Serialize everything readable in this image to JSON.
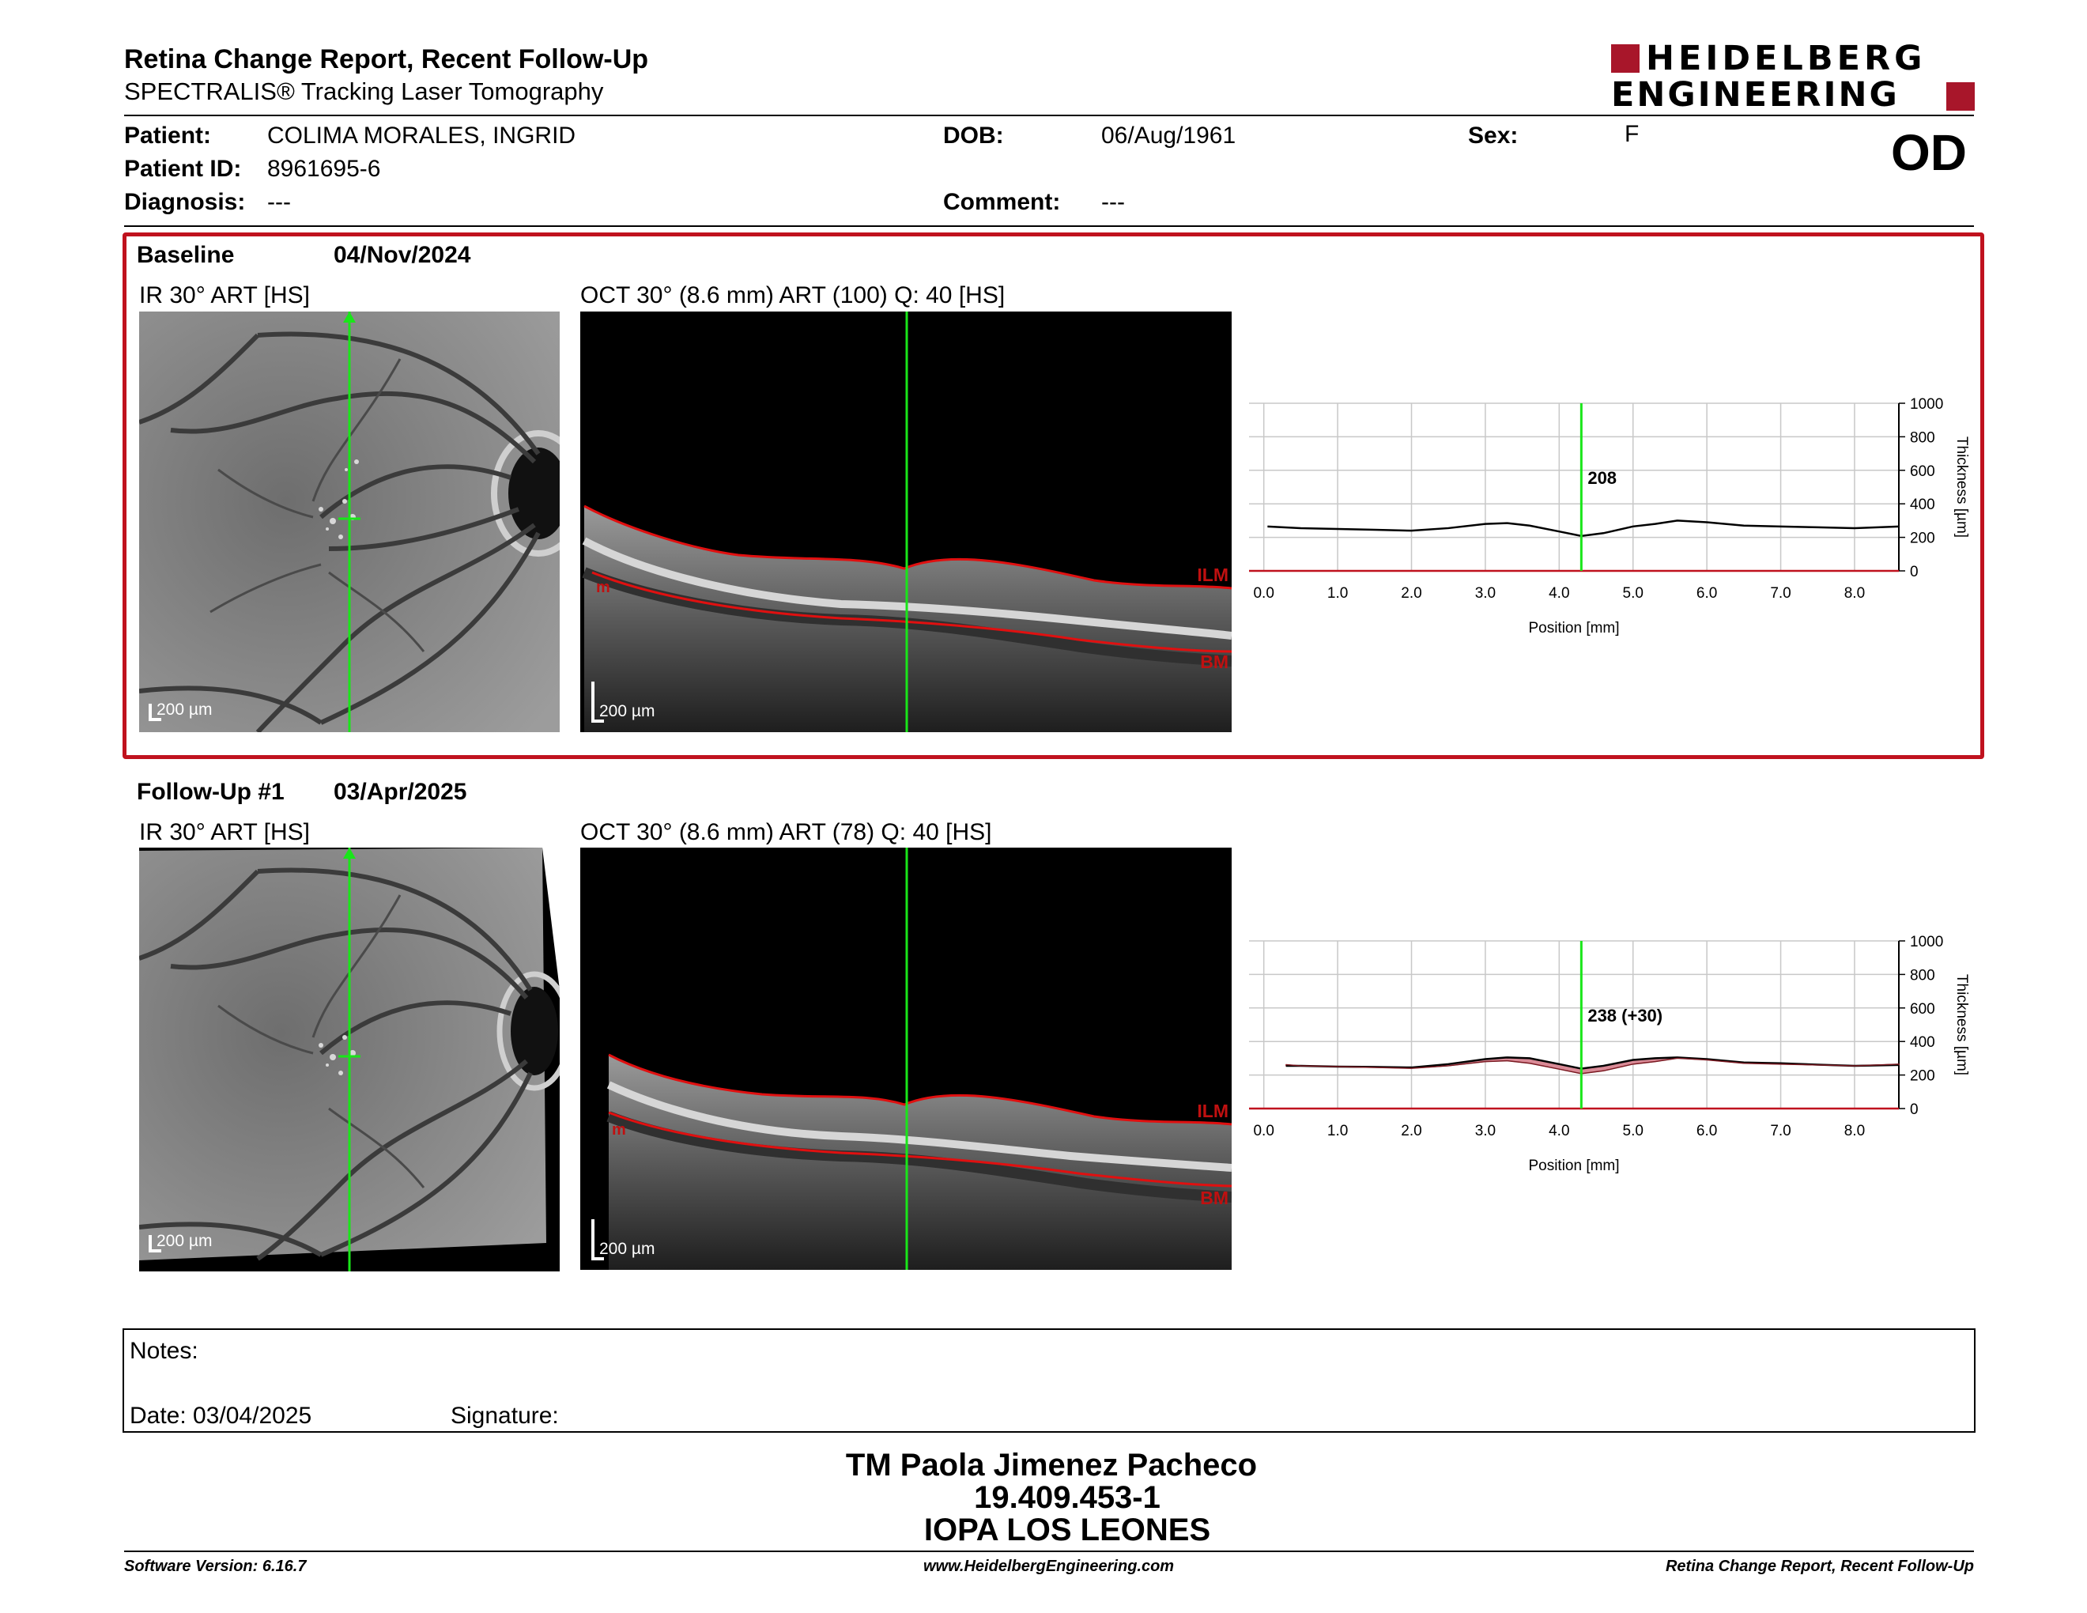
{
  "header": {
    "title": "Retina Change Report, Recent Follow-Up",
    "subtitle": "SPECTRALIS® Tracking Laser Tomography",
    "logo_line1": "HEIDELBERG",
    "logo_line2": "ENGINEERING",
    "eye": "OD"
  },
  "patient": {
    "patient_label": "Patient:",
    "patient_value": "COLIMA MORALES, INGRID",
    "id_label": "Patient ID:",
    "id_value": "8961695-6",
    "diagnosis_label": "Diagnosis:",
    "diagnosis_value": "---",
    "dob_label": "DOB:",
    "dob_value": "06/Aug/1961",
    "comment_label": "Comment:",
    "comment_value": "---",
    "sex_label": "Sex:",
    "sex_value": "F"
  },
  "baseline": {
    "label": "Baseline",
    "date": "04/Nov/2024",
    "ir_title": "IR 30° ART [HS]",
    "oct_title": "OCT 30° (8.6 mm) ART (100) Q: 40 [HS]",
    "scale_ir": "200 µm",
    "scale_oct": "200 µm",
    "ilm": "ILM",
    "bm": "BM",
    "left_tag": "m",
    "marker_value": "208"
  },
  "followup": {
    "label": "Follow-Up #1",
    "date": "03/Apr/2025",
    "ir_title": "IR 30° ART [HS]",
    "oct_title": "OCT 30° (8.6 mm) ART (78) Q: 40 [HS]",
    "scale_ir": "200 µm",
    "scale_oct": "200 µm",
    "ilm": "ILM",
    "bm": "BM",
    "left_tag": "m",
    "marker_value": "238 (+30)"
  },
  "notes": {
    "notes_label": "Notes:",
    "date_label": "Date: 03/04/2025",
    "signature_label": "Signature:"
  },
  "stamp": {
    "line1": "TM Paola Jimenez Pacheco",
    "line2": "19.409.453-1",
    "line3": "IOPA LOS LEONES"
  },
  "footer": {
    "left": "Software Version: 6.16.7",
    "center": "www.HeidelbergEngineering.com",
    "right": "Retina Change Report, Recent Follow-Up"
  },
  "colors": {
    "accent_red": "#a8162a",
    "ilm_line": "#e01010",
    "scan_line": "#19e619"
  },
  "chart_data": [
    {
      "type": "line",
      "xlabel": "Position [mm]",
      "ylabel": "Thickness [µm]",
      "xlim": [
        -0.2,
        8.6
      ],
      "ylim": [
        0,
        1000
      ],
      "x_ticks": [
        "0.0",
        "1.0",
        "2.0",
        "3.0",
        "4.0",
        "5.0",
        "6.0",
        "7.0",
        "8.0"
      ],
      "y_ticks": [
        "0",
        "200",
        "400",
        "600",
        "800",
        "1000"
      ],
      "marker_x": 4.3,
      "marker_label": "208",
      "grid": true,
      "series": [
        {
          "x": [
            0.05,
            0.5,
            1.0,
            1.5,
            2.0,
            2.5,
            3.0,
            3.3,
            3.6,
            4.0,
            4.3,
            4.6,
            5.0,
            5.3,
            5.6,
            6.0,
            6.5,
            7.0,
            7.5,
            8.0,
            8.6
          ],
          "values": [
            265,
            255,
            250,
            245,
            240,
            255,
            280,
            285,
            270,
            235,
            208,
            225,
            265,
            280,
            300,
            290,
            270,
            265,
            260,
            255,
            265
          ]
        }
      ]
    },
    {
      "type": "line",
      "xlabel": "Position [mm]",
      "ylabel": "Thickness [µm]",
      "xlim": [
        -0.2,
        8.6
      ],
      "ylim": [
        0,
        1000
      ],
      "x_ticks": [
        "0.0",
        "1.0",
        "2.0",
        "3.0",
        "4.0",
        "5.0",
        "6.0",
        "7.0",
        "8.0"
      ],
      "y_ticks": [
        "0",
        "200",
        "400",
        "600",
        "800",
        "1000"
      ],
      "marker_x": 4.3,
      "marker_label": "238 (+30)",
      "grid": true,
      "series": [
        {
          "x": [
            0.3,
            0.5,
            1.0,
            1.5,
            2.0,
            2.5,
            3.0,
            3.3,
            3.6,
            4.0,
            4.3,
            4.6,
            5.0,
            5.3,
            5.6,
            6.0,
            6.5,
            7.0,
            7.5,
            8.0,
            8.6
          ],
          "values": [
            255,
            255,
            250,
            248,
            245,
            265,
            295,
            305,
            300,
            265,
            238,
            255,
            290,
            300,
            305,
            295,
            275,
            270,
            262,
            255,
            260
          ]
        },
        {
          "x": [
            0.3,
            0.5,
            1.0,
            1.5,
            2.0,
            2.5,
            3.0,
            3.3,
            3.6,
            4.0,
            4.3,
            4.6,
            5.0,
            5.3,
            5.6,
            6.0,
            6.5,
            7.0,
            7.5,
            8.0,
            8.6
          ],
          "values": [
            262,
            255,
            250,
            245,
            240,
            255,
            280,
            285,
            270,
            235,
            208,
            225,
            265,
            280,
            300,
            290,
            270,
            265,
            260,
            255,
            265
          ]
        }
      ]
    }
  ]
}
